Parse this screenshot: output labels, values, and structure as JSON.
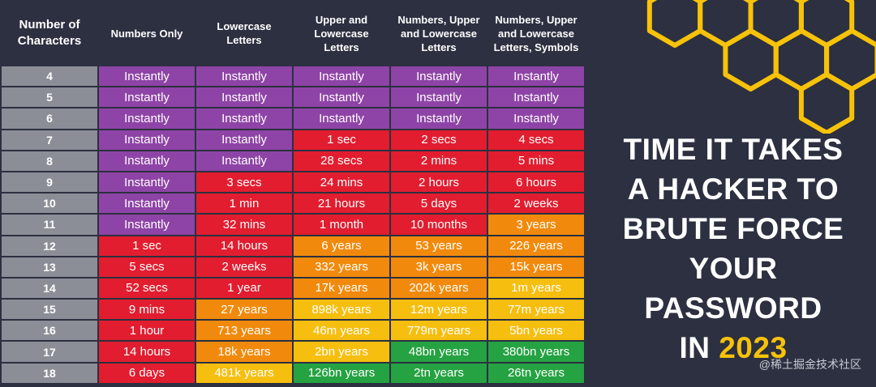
{
  "headline": {
    "lines": [
      "TIME IT TAKES",
      "A HACKER TO",
      "BRUTE FORCE",
      "YOUR",
      "PASSWORD"
    ],
    "last_prefix": "IN ",
    "year": "2023"
  },
  "watermark": "@稀土掘金技术社区",
  "colors": {
    "purple": "#8e44a6",
    "red": "#e11d2f",
    "orange": "#f18a0c",
    "yellow": "#f6be0f",
    "green": "#25a242",
    "gray": "#8b8e96",
    "background": "#2c3040",
    "honeycomb": "#f7c20a"
  },
  "chart_data": {
    "type": "table",
    "title": "TIME IT TAKES A HACKER TO BRUTE FORCE YOUR PASSWORD IN 2023",
    "first_header": [
      "Number of",
      "Characters"
    ],
    "columns": [
      [
        "Numbers Only"
      ],
      [
        "Lowercase",
        "Letters"
      ],
      [
        "Upper and",
        "Lowercase",
        "Letters"
      ],
      [
        "Numbers, Upper",
        "and Lowercase",
        "Letters"
      ],
      [
        "Numbers, Upper",
        "and Lowercase",
        "Letters, Symbols"
      ]
    ],
    "rows": [
      {
        "chars": "4",
        "values": [
          "Instantly",
          "Instantly",
          "Instantly",
          "Instantly",
          "Instantly"
        ],
        "colors": [
          "purple",
          "purple",
          "purple",
          "purple",
          "purple"
        ]
      },
      {
        "chars": "5",
        "values": [
          "Instantly",
          "Instantly",
          "Instantly",
          "Instantly",
          "Instantly"
        ],
        "colors": [
          "purple",
          "purple",
          "purple",
          "purple",
          "purple"
        ]
      },
      {
        "chars": "6",
        "values": [
          "Instantly",
          "Instantly",
          "Instantly",
          "Instantly",
          "Instantly"
        ],
        "colors": [
          "purple",
          "purple",
          "purple",
          "purple",
          "purple"
        ]
      },
      {
        "chars": "7",
        "values": [
          "Instantly",
          "Instantly",
          "1 sec",
          "2 secs",
          "4 secs"
        ],
        "colors": [
          "purple",
          "purple",
          "red",
          "red",
          "red"
        ]
      },
      {
        "chars": "8",
        "values": [
          "Instantly",
          "Instantly",
          "28 secs",
          "2 mins",
          "5 mins"
        ],
        "colors": [
          "purple",
          "purple",
          "red",
          "red",
          "red"
        ]
      },
      {
        "chars": "9",
        "values": [
          "Instantly",
          "3 secs",
          "24 mins",
          "2 hours",
          "6 hours"
        ],
        "colors": [
          "purple",
          "red",
          "red",
          "red",
          "red"
        ]
      },
      {
        "chars": "10",
        "values": [
          "Instantly",
          "1 min",
          "21 hours",
          "5 days",
          "2 weeks"
        ],
        "colors": [
          "purple",
          "red",
          "red",
          "red",
          "red"
        ]
      },
      {
        "chars": "11",
        "values": [
          "Instantly",
          "32 mins",
          "1 month",
          "10 months",
          "3 years"
        ],
        "colors": [
          "purple",
          "red",
          "red",
          "red",
          "orange"
        ]
      },
      {
        "chars": "12",
        "values": [
          "1 sec",
          "14 hours",
          "6 years",
          "53 years",
          "226 years"
        ],
        "colors": [
          "red",
          "red",
          "orange",
          "orange",
          "orange"
        ]
      },
      {
        "chars": "13",
        "values": [
          "5 secs",
          "2 weeks",
          "332 years",
          "3k years",
          "15k years"
        ],
        "colors": [
          "red",
          "red",
          "orange",
          "orange",
          "orange"
        ]
      },
      {
        "chars": "14",
        "values": [
          "52 secs",
          "1 year",
          "17k years",
          "202k years",
          "1m years"
        ],
        "colors": [
          "red",
          "red",
          "orange",
          "orange",
          "yellow"
        ]
      },
      {
        "chars": "15",
        "values": [
          "9 mins",
          "27 years",
          "898k years",
          "12m years",
          "77m years"
        ],
        "colors": [
          "red",
          "orange",
          "yellow",
          "yellow",
          "yellow"
        ]
      },
      {
        "chars": "16",
        "values": [
          "1 hour",
          "713 years",
          "46m years",
          "779m years",
          "5bn years"
        ],
        "colors": [
          "red",
          "orange",
          "yellow",
          "yellow",
          "yellow"
        ]
      },
      {
        "chars": "17",
        "values": [
          "14 hours",
          "18k years",
          "2bn years",
          "48bn years",
          "380bn years"
        ],
        "colors": [
          "red",
          "orange",
          "yellow",
          "green",
          "green"
        ]
      },
      {
        "chars": "18",
        "values": [
          "6 days",
          "481k years",
          "126bn years",
          "2tn years",
          "26tn years"
        ],
        "colors": [
          "red",
          "yellow",
          "green",
          "green",
          "green"
        ]
      }
    ]
  }
}
